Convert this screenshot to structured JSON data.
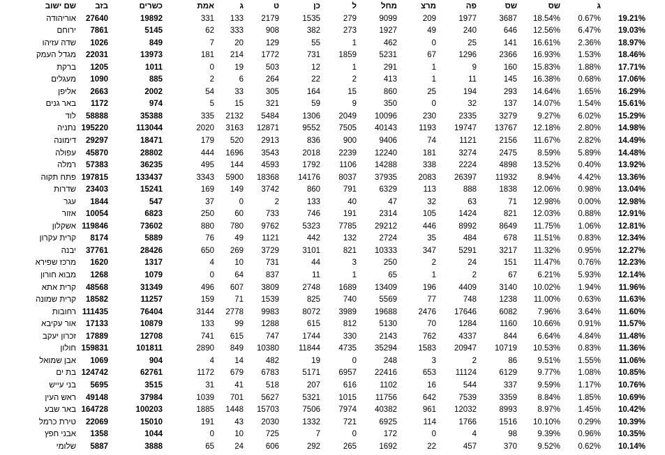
{
  "title": "haredi-vote-share-by-settlement",
  "chart_data": {
    "type": "table",
    "columns": [
      "שם ישוב",
      "בזב",
      "כשרים",
      "אמת",
      "ג",
      "ט",
      "כן",
      "ל",
      "מחל",
      "מרצ",
      "פה",
      "שס",
      "שס",
      "ג",
      ""
    ],
    "rows": [
      [
        "אוריהודה",
        "27640",
        "19892",
        "331",
        "133",
        "2179",
        "1535",
        "279",
        "9099",
        "209",
        "1977",
        "3687",
        "18.54%",
        "0.67%",
        "19.21%"
      ],
      [
        "ירוחם",
        "7861",
        "5145",
        "62",
        "333",
        "908",
        "382",
        "273",
        "1927",
        "49",
        "240",
        "646",
        "12.56%",
        "6.47%",
        "19.03%"
      ],
      [
        "שדה עזיהו",
        "1026",
        "849",
        "7",
        "20",
        "129",
        "55",
        "1",
        "462",
        "0",
        "25",
        "141",
        "16.61%",
        "2.36%",
        "18.97%"
      ],
      [
        "מגדל העמק",
        "22031",
        "13973",
        "181",
        "214",
        "1772",
        "731",
        "1859",
        "5231",
        "67",
        "1296",
        "2366",
        "16.93%",
        "1.53%",
        "18.46%"
      ],
      [
        "ברקת",
        "1205",
        "1011",
        "0",
        "19",
        "503",
        "12",
        "1",
        "291",
        "1",
        "9",
        "160",
        "15.83%",
        "1.88%",
        "17.71%"
      ],
      [
        "מעגלים",
        "1090",
        "885",
        "2",
        "6",
        "264",
        "22",
        "2",
        "413",
        "1",
        "11",
        "145",
        "16.38%",
        "0.68%",
        "17.06%"
      ],
      [
        "אליפן",
        "2663",
        "2002",
        "54",
        "33",
        "305",
        "164",
        "15",
        "860",
        "25",
        "194",
        "293",
        "14.64%",
        "1.65%",
        "16.29%"
      ],
      [
        "באר גנים",
        "1172",
        "974",
        "5",
        "15",
        "321",
        "59",
        "9",
        "350",
        "0",
        "32",
        "137",
        "14.07%",
        "1.54%",
        "15.61%"
      ],
      [
        "לוד",
        "58888",
        "35388",
        "335",
        "2132",
        "5484",
        "1306",
        "2049",
        "10096",
        "230",
        "2335",
        "3279",
        "9.27%",
        "6.02%",
        "15.29%"
      ],
      [
        "נתניה",
        "195220",
        "113044",
        "2020",
        "3163",
        "12871",
        "9552",
        "7505",
        "40143",
        "1193",
        "19747",
        "13767",
        "12.18%",
        "2.80%",
        "14.98%"
      ],
      [
        "דימונה",
        "29297",
        "18471",
        "179",
        "520",
        "2913",
        "836",
        "900",
        "9406",
        "74",
        "1121",
        "2156",
        "11.67%",
        "2.82%",
        "14.49%"
      ],
      [
        "עפולה",
        "45870",
        "28802",
        "444",
        "1696",
        "3543",
        "2018",
        "2239",
        "12240",
        "181",
        "3274",
        "2475",
        "8.59%",
        "5.89%",
        "14.48%"
      ],
      [
        "רמלה",
        "57383",
        "36235",
        "495",
        "144",
        "4593",
        "1792",
        "1106",
        "14288",
        "338",
        "2224",
        "4898",
        "13.52%",
        "0.40%",
        "13.92%"
      ],
      [
        "פתח תקוה",
        "197815",
        "133437",
        "3343",
        "5900",
        "18368",
        "14176",
        "8037",
        "37935",
        "2083",
        "26397",
        "11932",
        "8.94%",
        "4.42%",
        "13.36%"
      ],
      [
        "שדרות",
        "23403",
        "15241",
        "169",
        "149",
        "3742",
        "860",
        "791",
        "6329",
        "113",
        "888",
        "1838",
        "12.06%",
        "0.98%",
        "13.04%"
      ],
      [
        "עגר",
        "1844",
        "547",
        "37",
        "0",
        "2",
        "133",
        "40",
        "47",
        "32",
        "63",
        "71",
        "12.98%",
        "0.00%",
        "12.98%"
      ],
      [
        "אזור",
        "10054",
        "6823",
        "250",
        "60",
        "733",
        "746",
        "191",
        "2314",
        "105",
        "1424",
        "821",
        "12.03%",
        "0.88%",
        "12.91%"
      ],
      [
        "אשקלון",
        "119846",
        "73602",
        "880",
        "780",
        "9762",
        "5323",
        "7785",
        "29212",
        "446",
        "8992",
        "8649",
        "11.75%",
        "1.06%",
        "12.81%"
      ],
      [
        "קרית עקרון",
        "8174",
        "5889",
        "76",
        "49",
        "1121",
        "442",
        "132",
        "2724",
        "35",
        "484",
        "678",
        "11.51%",
        "0.83%",
        "12.34%"
      ],
      [
        "יבנה",
        "37761",
        "28426",
        "650",
        "269",
        "3729",
        "3101",
        "821",
        "10333",
        "347",
        "5291",
        "3217",
        "11.32%",
        "0.95%",
        "12.27%"
      ],
      [
        "מרכז שפירא",
        "1620",
        "1317",
        "4",
        "10",
        "731",
        "44",
        "3",
        "250",
        "2",
        "24",
        "151",
        "11.47%",
        "0.76%",
        "12.23%"
      ],
      [
        "מבוא חורון",
        "1268",
        "1079",
        "0",
        "64",
        "837",
        "11",
        "1",
        "65",
        "1",
        "2",
        "67",
        "6.21%",
        "5.93%",
        "12.14%"
      ],
      [
        "קרית אתא",
        "48568",
        "31349",
        "496",
        "607",
        "3809",
        "2748",
        "1689",
        "13409",
        "196",
        "4409",
        "3140",
        "10.02%",
        "1.94%",
        "11.96%"
      ],
      [
        "קרית שמונה",
        "18582",
        "11257",
        "159",
        "71",
        "1539",
        "825",
        "740",
        "5569",
        "77",
        "748",
        "1238",
        "11.00%",
        "0.63%",
        "11.63%"
      ],
      [
        "רחובות",
        "111435",
        "76404",
        "3144",
        "2778",
        "9983",
        "8072",
        "3989",
        "19688",
        "2476",
        "17646",
        "6082",
        "7.96%",
        "3.64%",
        "11.60%"
      ],
      [
        "אור עקיבא",
        "17133",
        "10879",
        "133",
        "99",
        "1288",
        "615",
        "812",
        "5130",
        "70",
        "1284",
        "1160",
        "10.66%",
        "0.91%",
        "11.57%"
      ],
      [
        "זכרון יעקב",
        "17889",
        "12708",
        "741",
        "615",
        "747",
        "1744",
        "330",
        "2143",
        "762",
        "4337",
        "844",
        "6.64%",
        "4.84%",
        "11.48%"
      ],
      [
        "חולון",
        "159831",
        "101811",
        "2890",
        "849",
        "10380",
        "11844",
        "4735",
        "35294",
        "1583",
        "20947",
        "10719",
        "10.53%",
        "0.83%",
        "11.36%"
      ],
      [
        "אבן שמואל",
        "1069",
        "904",
        "4",
        "14",
        "482",
        "19",
        "0",
        "248",
        "3",
        "2",
        "86",
        "9.51%",
        "1.55%",
        "11.06%"
      ],
      [
        "בת ים",
        "124742",
        "62761",
        "1172",
        "679",
        "6783",
        "5171",
        "6957",
        "22416",
        "653",
        "11124",
        "6129",
        "9.77%",
        "1.08%",
        "10.85%"
      ],
      [
        "בני עייש",
        "5695",
        "3515",
        "31",
        "41",
        "518",
        "207",
        "616",
        "1102",
        "16",
        "544",
        "337",
        "9.59%",
        "1.17%",
        "10.76%"
      ],
      [
        "ראש העין",
        "49148",
        "37984",
        "1039",
        "701",
        "5627",
        "5321",
        "1015",
        "11756",
        "642",
        "7539",
        "3359",
        "8.84%",
        "1.85%",
        "10.69%"
      ],
      [
        "באר שבע",
        "164728",
        "100203",
        "1885",
        "1448",
        "15703",
        "7506",
        "7974",
        "40382",
        "961",
        "12032",
        "8993",
        "8.97%",
        "1.45%",
        "10.42%"
      ],
      [
        "טירת כרמל",
        "22069",
        "15010",
        "191",
        "43",
        "2030",
        "1332",
        "721",
        "6925",
        "114",
        "1766",
        "1516",
        "10.10%",
        "0.29%",
        "10.39%"
      ],
      [
        "אבני חפץ",
        "1358",
        "1044",
        "0",
        "10",
        "725",
        "7",
        "0",
        "172",
        "0",
        "4",
        "98",
        "9.39%",
        "0.96%",
        "10.35%"
      ],
      [
        "שלומי",
        "5887",
        "3888",
        "65",
        "24",
        "606",
        "292",
        "265",
        "1692",
        "22",
        "457",
        "370",
        "9.52%",
        "0.62%",
        "10.14%"
      ]
    ],
    "layout_hints": {
      "text_color": "#000000",
      "background": "#ffffff",
      "bold_columns": [
        "בזב",
        "כשרים",
        "total-percent"
      ],
      "last_column_is_sum_of": [
        "שס %",
        "ג %"
      ]
    }
  }
}
